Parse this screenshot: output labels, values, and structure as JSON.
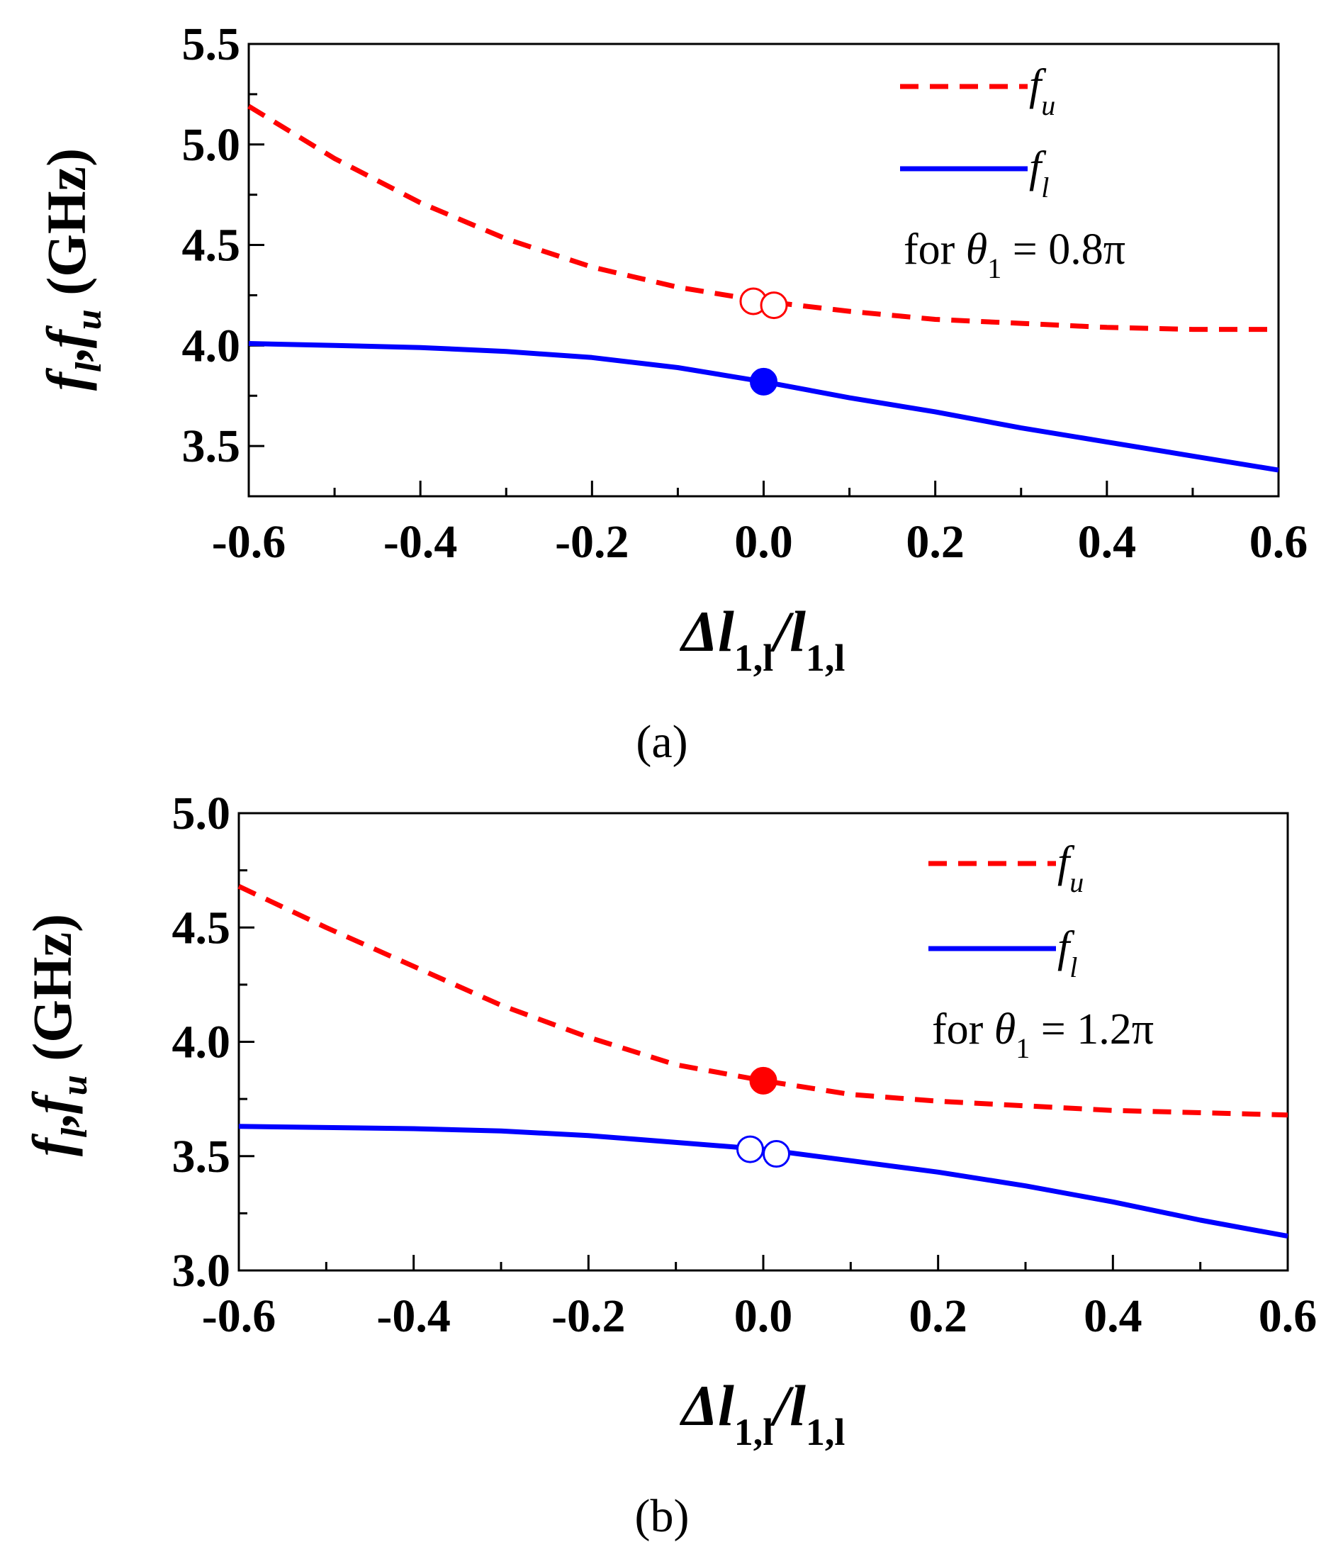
{
  "chart_data": [
    {
      "type": "line",
      "panel_label": "(a)",
      "xlabel": {
        "main": "Δl",
        "sub1": "1,l",
        "slash": "/l",
        "sub2": "1,l"
      },
      "ylabel": {
        "f": "f",
        "l": "l",
        "comma": ",",
        "u": "u",
        "unit": "(GHz)"
      },
      "xlim": [
        -0.6,
        0.6
      ],
      "ylim": [
        3.25,
        5.5
      ],
      "x_ticks": [
        -0.6,
        -0.4,
        -0.2,
        0.0,
        0.2,
        0.4,
        0.6
      ],
      "x_tick_labels": [
        "-0.6",
        "-0.4",
        "-0.2",
        "0.0",
        "0.2",
        "0.4",
        "0.6"
      ],
      "y_ticks": [
        3.5,
        4.0,
        4.5,
        5.0,
        5.5
      ],
      "y_tick_labels": [
        "3.5",
        "4.0",
        "4.5",
        "5.0",
        "5.5"
      ],
      "annotation": {
        "prefix": "for ",
        "theta": "θ",
        "sub": "1",
        "value": " = 0.8π"
      },
      "legend": [
        {
          "name": "f",
          "sub": "u",
          "style": "dashed",
          "color": "#ff0000"
        },
        {
          "name": "f",
          "sub": "l",
          "style": "solid",
          "color": "#0000ff"
        }
      ],
      "series": [
        {
          "name": "f_u",
          "color": "#ff0000",
          "style": "dashed",
          "x": [
            -0.6,
            -0.5,
            -0.4,
            -0.3,
            -0.2,
            -0.1,
            0.0,
            0.1,
            0.2,
            0.3,
            0.4,
            0.5,
            0.6
          ],
          "y": [
            5.19,
            4.93,
            4.71,
            4.53,
            4.39,
            4.29,
            4.22,
            4.17,
            4.13,
            4.11,
            4.09,
            4.08,
            4.08
          ]
        },
        {
          "name": "f_l",
          "color": "#0000ff",
          "style": "solid",
          "x": [
            -0.6,
            -0.5,
            -0.4,
            -0.3,
            -0.2,
            -0.1,
            0.0,
            0.1,
            0.2,
            0.3,
            0.4,
            0.5,
            0.6
          ],
          "y": [
            4.01,
            4.0,
            3.99,
            3.97,
            3.94,
            3.89,
            3.82,
            3.74,
            3.67,
            3.59,
            3.52,
            3.45,
            3.38
          ]
        }
      ],
      "markers": [
        {
          "x": -0.012,
          "y": 4.22,
          "color": "#ff0000",
          "filled": false
        },
        {
          "x": 0.012,
          "y": 4.2,
          "color": "#ff0000",
          "filled": false
        },
        {
          "x": 0.0,
          "y": 3.82,
          "color": "#0000ff",
          "filled": true
        }
      ]
    },
    {
      "type": "line",
      "panel_label": "(b)",
      "xlabel": {
        "main": "Δl",
        "sub1": "1,l",
        "slash": "/l",
        "sub2": "1,l"
      },
      "ylabel": {
        "f": "f",
        "l": "l",
        "comma": ",",
        "u": "u",
        "unit": "(GHz)"
      },
      "xlim": [
        -0.6,
        0.6
      ],
      "ylim": [
        3.0,
        5.0
      ],
      "x_ticks": [
        -0.6,
        -0.4,
        -0.2,
        0.0,
        0.2,
        0.4,
        0.6
      ],
      "x_tick_labels": [
        "-0.6",
        "-0.4",
        "-0.2",
        "0.0",
        "0.2",
        "0.4",
        "0.6"
      ],
      "y_ticks": [
        3.0,
        3.5,
        4.0,
        4.5,
        5.0
      ],
      "y_tick_labels": [
        "3.0",
        "3.5",
        "4.0",
        "4.5",
        "5.0"
      ],
      "annotation": {
        "prefix": "for ",
        "theta": "θ",
        "sub": "1",
        "value": " = 1.2π"
      },
      "legend": [
        {
          "name": "f",
          "sub": "u",
          "style": "dashed",
          "color": "#ff0000"
        },
        {
          "name": "f",
          "sub": "l",
          "style": "solid",
          "color": "#0000ff"
        }
      ],
      "series": [
        {
          "name": "f_u",
          "color": "#ff0000",
          "style": "dashed",
          "x": [
            -0.6,
            -0.5,
            -0.4,
            -0.3,
            -0.2,
            -0.1,
            0.0,
            0.1,
            0.2,
            0.3,
            0.4,
            0.5,
            0.6
          ],
          "y": [
            4.68,
            4.5,
            4.33,
            4.16,
            4.02,
            3.9,
            3.83,
            3.77,
            3.74,
            3.72,
            3.7,
            3.69,
            3.68
          ]
        },
        {
          "name": "f_l",
          "color": "#0000ff",
          "style": "solid",
          "x": [
            -0.6,
            -0.5,
            -0.4,
            -0.3,
            -0.2,
            -0.1,
            0.0,
            0.1,
            0.2,
            0.3,
            0.4,
            0.5,
            0.6
          ],
          "y": [
            3.63,
            3.625,
            3.62,
            3.61,
            3.59,
            3.56,
            3.53,
            3.48,
            3.43,
            3.37,
            3.3,
            3.22,
            3.15
          ]
        }
      ],
      "markers": [
        {
          "x": 0.0,
          "y": 3.83,
          "color": "#ff0000",
          "filled": true
        },
        {
          "x": -0.015,
          "y": 3.53,
          "color": "#0000ff",
          "filled": false
        },
        {
          "x": 0.015,
          "y": 3.51,
          "color": "#0000ff",
          "filled": false
        }
      ]
    }
  ]
}
